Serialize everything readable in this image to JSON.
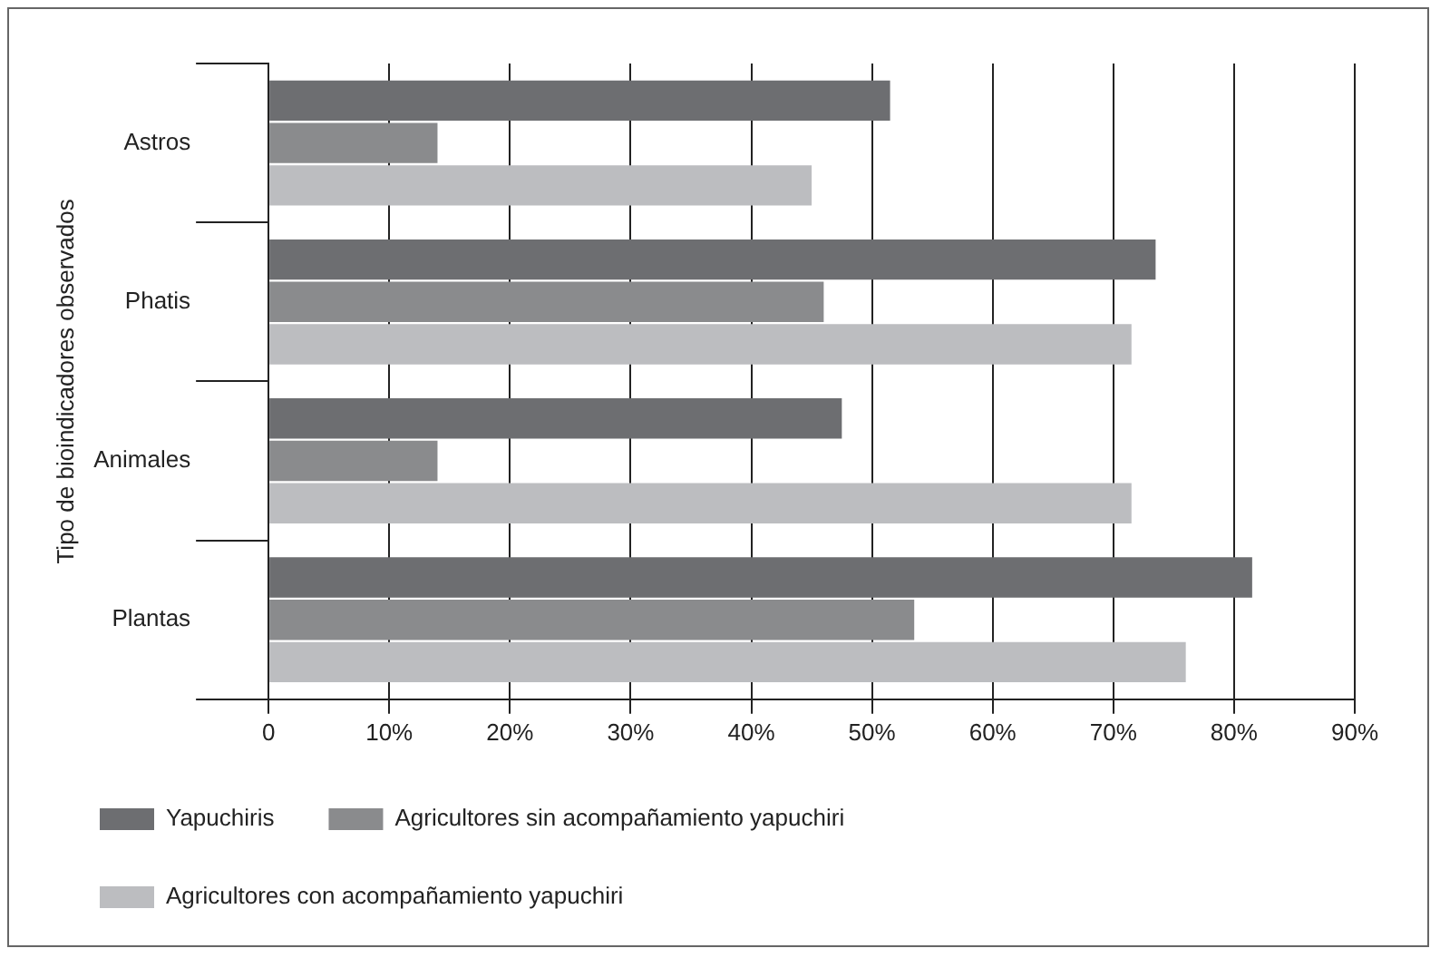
{
  "chart_data": {
    "type": "bar",
    "orientation": "horizontal",
    "ylabel": "Tipo de bioindicadores observados",
    "categories": [
      "Astros",
      "Phatis",
      "Animales",
      "Plantas"
    ],
    "series": [
      {
        "name": "Yapuchiris",
        "color": "#6d6e71",
        "values": [
          51.5,
          73.5,
          47.5,
          81.5
        ]
      },
      {
        "name": "Agricultores sin acompañamiento yapuchiri",
        "color": "#8a8b8d",
        "values": [
          14,
          46,
          14,
          53.5
        ]
      },
      {
        "name": "Agricultores con acompañamiento yapuchiri",
        "color": "#bcbdc0",
        "values": [
          45,
          71.5,
          71.5,
          76
        ]
      }
    ],
    "xlim": [
      0,
      90
    ],
    "xticks": [
      {
        "value": 0,
        "label": "0"
      },
      {
        "value": 10,
        "label": "10%"
      },
      {
        "value": 20,
        "label": "20%"
      },
      {
        "value": 30,
        "label": "30%"
      },
      {
        "value": 40,
        "label": "40%"
      },
      {
        "value": 50,
        "label": "50%"
      },
      {
        "value": 60,
        "label": "60%"
      },
      {
        "value": 70,
        "label": "70%"
      },
      {
        "value": 80,
        "label": "80%"
      },
      {
        "value": 90,
        "label": "90%"
      }
    ],
    "grid": "x",
    "legend": "bottom"
  }
}
